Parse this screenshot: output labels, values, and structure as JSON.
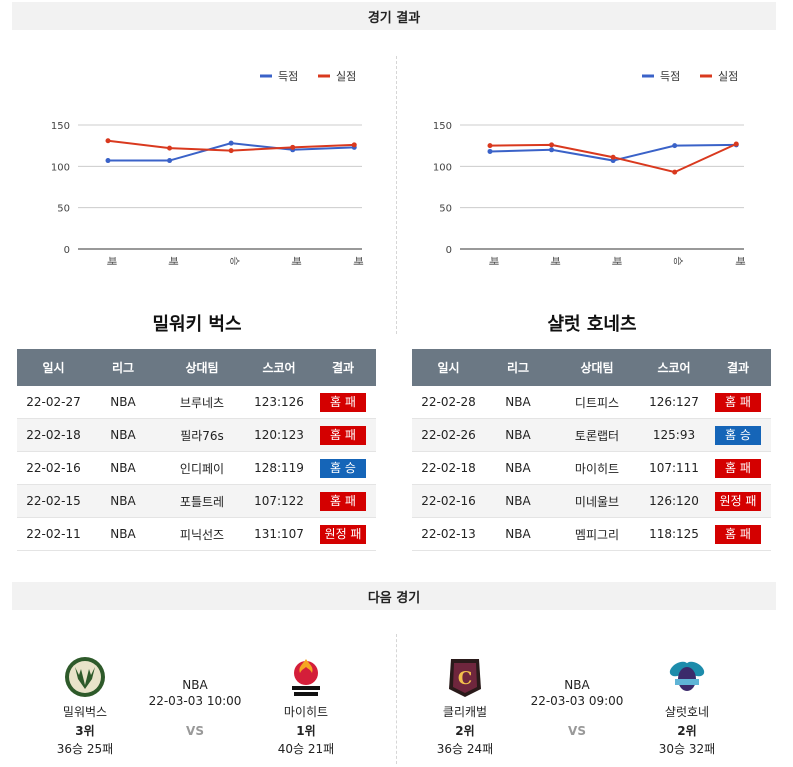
{
  "sections": {
    "results_title": "경기 결과",
    "next_title": "다음 경기"
  },
  "colors": {
    "scored": "#3a62c8",
    "conceded": "#d9391e",
    "win": "#1565b8",
    "loss": "#d40000",
    "header": "#6b7884"
  },
  "legend": {
    "scored": "득점",
    "conceded": "실점"
  },
  "table_headers": [
    "일시",
    "리그",
    "상대팀",
    "스코어",
    "결과"
  ],
  "teams": [
    {
      "name": "밀워키 벅스",
      "chart_data": {
        "type": "line",
        "categories": [
          "패",
          "패",
          "승",
          "패",
          "패"
        ],
        "ylim": [
          0,
          150
        ],
        "yticks": [
          0,
          50,
          100,
          150
        ],
        "series": [
          {
            "name": "득점",
            "values": [
              107,
              107,
              128,
              120,
              123
            ]
          },
          {
            "name": "실점",
            "values": [
              131,
              122,
              119,
              123,
              126
            ]
          }
        ]
      },
      "rows": [
        {
          "date": "22-02-27",
          "league": "NBA",
          "opponent": "브루네츠",
          "score": "123:126",
          "result": "홈 패",
          "win": false
        },
        {
          "date": "22-02-18",
          "league": "NBA",
          "opponent": "필라76s",
          "score": "120:123",
          "result": "홈 패",
          "win": false
        },
        {
          "date": "22-02-16",
          "league": "NBA",
          "opponent": "인디페이",
          "score": "128:119",
          "result": "홈 승",
          "win": true
        },
        {
          "date": "22-02-15",
          "league": "NBA",
          "opponent": "포틀트레",
          "score": "107:122",
          "result": "홈 패",
          "win": false
        },
        {
          "date": "22-02-11",
          "league": "NBA",
          "opponent": "피닉선즈",
          "score": "131:107",
          "result": "원정 패",
          "win": false
        }
      ]
    },
    {
      "name": "샬럿 호네츠",
      "chart_data": {
        "type": "line",
        "categories": [
          "패",
          "패",
          "패",
          "승",
          "패"
        ],
        "ylim": [
          0,
          150
        ],
        "yticks": [
          0,
          50,
          100,
          150
        ],
        "series": [
          {
            "name": "득점",
            "values": [
              118,
              120,
              107,
              125,
              126
            ]
          },
          {
            "name": "실점",
            "values": [
              125,
              126,
              111,
              93,
              127
            ]
          }
        ]
      },
      "rows": [
        {
          "date": "22-02-28",
          "league": "NBA",
          "opponent": "디트피스",
          "score": "126:127",
          "result": "홈 패",
          "win": false
        },
        {
          "date": "22-02-26",
          "league": "NBA",
          "opponent": "토론랩터",
          "score": "125:93",
          "result": "홈 승",
          "win": true
        },
        {
          "date": "22-02-18",
          "league": "NBA",
          "opponent": "마이히트",
          "score": "107:111",
          "result": "홈 패",
          "win": false
        },
        {
          "date": "22-02-16",
          "league": "NBA",
          "opponent": "미네울브",
          "score": "126:120",
          "result": "원정 패",
          "win": false
        },
        {
          "date": "22-02-13",
          "league": "NBA",
          "opponent": "멤피그리",
          "score": "118:125",
          "result": "홈 패",
          "win": false
        }
      ]
    }
  ],
  "next_games": [
    {
      "league": "NBA",
      "datetime": "22-03-03 10:00",
      "vs": "VS",
      "home": {
        "name": "밀워벅스",
        "rank": "3위",
        "record": "36승 25패",
        "logo": "bucks-logo"
      },
      "away": {
        "name": "마이히트",
        "rank": "1위",
        "record": "40승 21패",
        "logo": "heat-logo"
      }
    },
    {
      "league": "NBA",
      "datetime": "22-03-03 09:00",
      "vs": "VS",
      "home": {
        "name": "클리캐벌",
        "rank": "2위",
        "record": "36승 24패",
        "logo": "cavaliers-logo"
      },
      "away": {
        "name": "샬럿호네",
        "rank": "2위",
        "record": "30승 32패",
        "logo": "hornets-logo"
      }
    }
  ]
}
